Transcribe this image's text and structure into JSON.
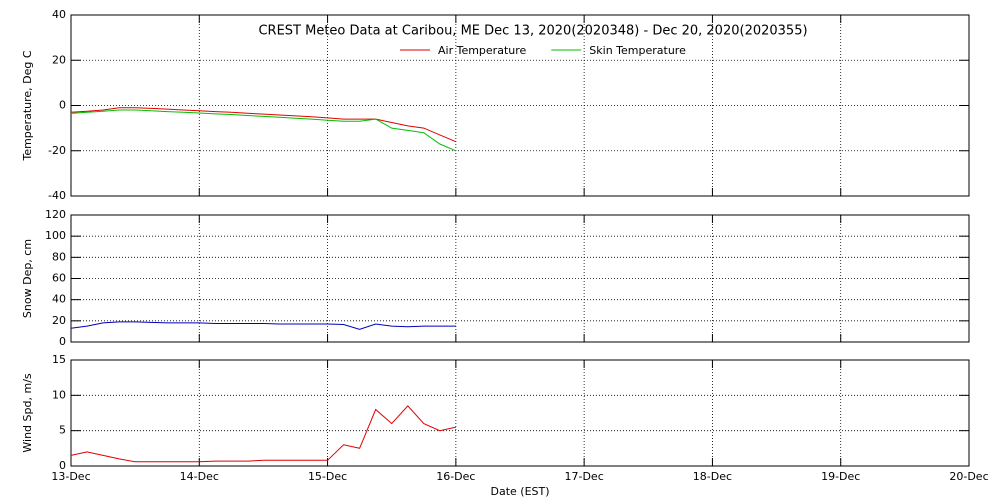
{
  "chart_data": [
    {
      "type": "line",
      "title": "CREST Meteo Data at Caribou, ME   Dec 13, 2020(2020348) - Dec 20, 2020(2020355)",
      "ylabel": "Temperature, Deg C",
      "x": [
        0,
        0.125,
        0.25,
        0.375,
        0.5,
        0.625,
        0.75,
        0.875,
        1,
        1.125,
        1.25,
        1.375,
        1.5,
        1.625,
        1.75,
        1.875,
        2,
        2.125,
        2.25,
        2.375,
        2.5,
        2.625,
        2.75,
        2.875,
        3
      ],
      "series": [
        {
          "name": "Air Temperature",
          "color": "#e00000",
          "values": [
            -3,
            -2.5,
            -2,
            -1,
            -1,
            -1.3,
            -1.6,
            -2,
            -2.3,
            -2.7,
            -3,
            -3.4,
            -3.8,
            -4.2,
            -4.6,
            -5,
            -5.5,
            -6,
            -6,
            -6,
            -7.5,
            -9,
            -10,
            -13,
            -16
          ]
        },
        {
          "name": "Skin Temperature",
          "color": "#00c000",
          "values": [
            -3.5,
            -3,
            -2.5,
            -2,
            -2,
            -2.3,
            -2.7,
            -3,
            -3.3,
            -3.7,
            -4,
            -4.4,
            -4.8,
            -5.2,
            -5.6,
            -6,
            -6.5,
            -7,
            -7,
            -6,
            -10,
            -11,
            -12,
            -17,
            -20
          ]
        }
      ],
      "xlim": [
        0,
        7
      ],
      "xticks": [
        0,
        1,
        2,
        3,
        4,
        5,
        6,
        7
      ],
      "ylim": [
        -40,
        40
      ],
      "yticks": [
        -40,
        -20,
        0,
        20,
        40
      ],
      "grid": true,
      "legend": "top"
    },
    {
      "type": "line",
      "ylabel": "Snow Dep, cm",
      "x": [
        0,
        0.125,
        0.25,
        0.375,
        0.5,
        0.625,
        0.75,
        0.875,
        1,
        1.125,
        1.25,
        1.375,
        1.5,
        1.625,
        1.75,
        1.875,
        2,
        2.125,
        2.25,
        2.375,
        2.5,
        2.625,
        2.75,
        2.875,
        3
      ],
      "series": [
        {
          "color": "#0000c0",
          "values": [
            13,
            15,
            18,
            19,
            19,
            18.5,
            18,
            18,
            18,
            17.5,
            17.5,
            17.5,
            17.5,
            17,
            17,
            17,
            17,
            16.5,
            12,
            17,
            15,
            14.5,
            15,
            15,
            15
          ]
        }
      ],
      "xlim": [
        0,
        7
      ],
      "xticks": [
        0,
        1,
        2,
        3,
        4,
        5,
        6,
        7
      ],
      "ylim": [
        0,
        120
      ],
      "yticks": [
        0,
        20,
        40,
        60,
        80,
        100,
        120
      ],
      "grid": true
    },
    {
      "type": "line",
      "ylabel": "Wind Spd, m/s",
      "xlabel": "Date (EST)",
      "x": [
        0,
        0.125,
        0.25,
        0.375,
        0.5,
        0.625,
        0.75,
        0.875,
        1,
        1.125,
        1.25,
        1.375,
        1.5,
        1.625,
        1.75,
        1.875,
        2,
        2.125,
        2.25,
        2.375,
        2.5,
        2.625,
        2.75,
        2.875,
        3
      ],
      "series": [
        {
          "color": "#e00000",
          "values": [
            1.5,
            2,
            1.5,
            1,
            0.6,
            0.6,
            0.6,
            0.6,
            0.6,
            0.7,
            0.7,
            0.7,
            0.8,
            0.8,
            0.8,
            0.8,
            0.8,
            3,
            2.5,
            8,
            6,
            8.5,
            6,
            5,
            5.5
          ]
        }
      ],
      "xlim": [
        0,
        7
      ],
      "xticks": [
        {
          "value": 0,
          "label": "13-Dec"
        },
        {
          "value": 1,
          "label": "14-Dec"
        },
        {
          "value": 2,
          "label": "15-Dec"
        },
        {
          "value": 3,
          "label": "16-Dec"
        },
        {
          "value": 4,
          "label": "17-Dec"
        },
        {
          "value": 5,
          "label": "18-Dec"
        },
        {
          "value": 6,
          "label": "19-Dec"
        },
        {
          "value": 7,
          "label": "20-Dec"
        }
      ],
      "ylim": [
        0,
        15
      ],
      "yticks": [
        0,
        5,
        10,
        15
      ],
      "grid": true
    }
  ]
}
